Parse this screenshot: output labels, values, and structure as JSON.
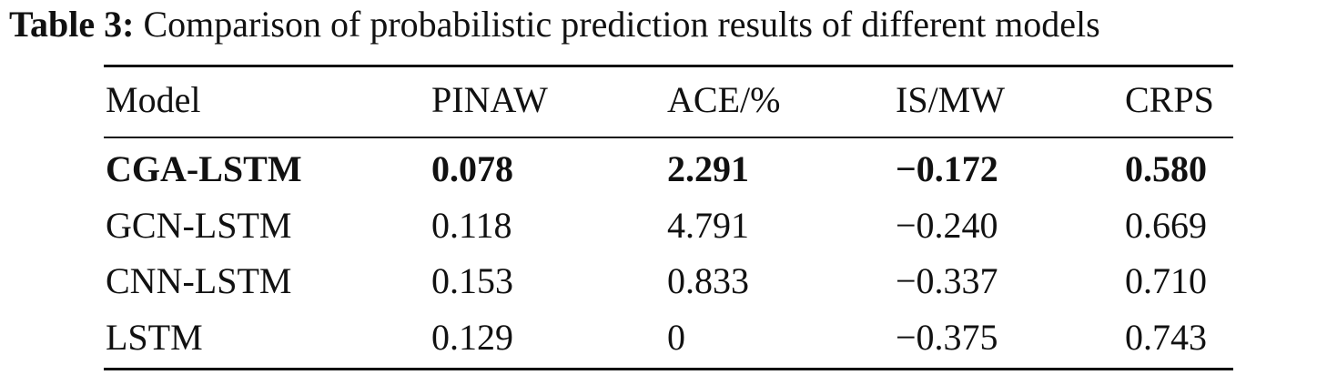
{
  "caption": {
    "label": "Table 3:",
    "text": "Comparison of probabilistic prediction results of different models"
  },
  "table": {
    "headers": [
      "Model",
      "PINAW",
      "ACE/%",
      "IS/MW",
      "CRPS"
    ],
    "rows": [
      {
        "cells": [
          "CGA-LSTM",
          "0.078",
          "2.291",
          "−0.172",
          "0.580"
        ],
        "bold": true
      },
      {
        "cells": [
          "GCN-LSTM",
          "0.118",
          "4.791",
          "−0.240",
          "0.669"
        ],
        "bold": false
      },
      {
        "cells": [
          "CNN-LSTM",
          "0.153",
          "0.833",
          "−0.337",
          "0.710"
        ],
        "bold": false
      },
      {
        "cells": [
          "LSTM",
          "0.129",
          "0",
          "−0.375",
          "0.743"
        ],
        "bold": false
      }
    ]
  }
}
